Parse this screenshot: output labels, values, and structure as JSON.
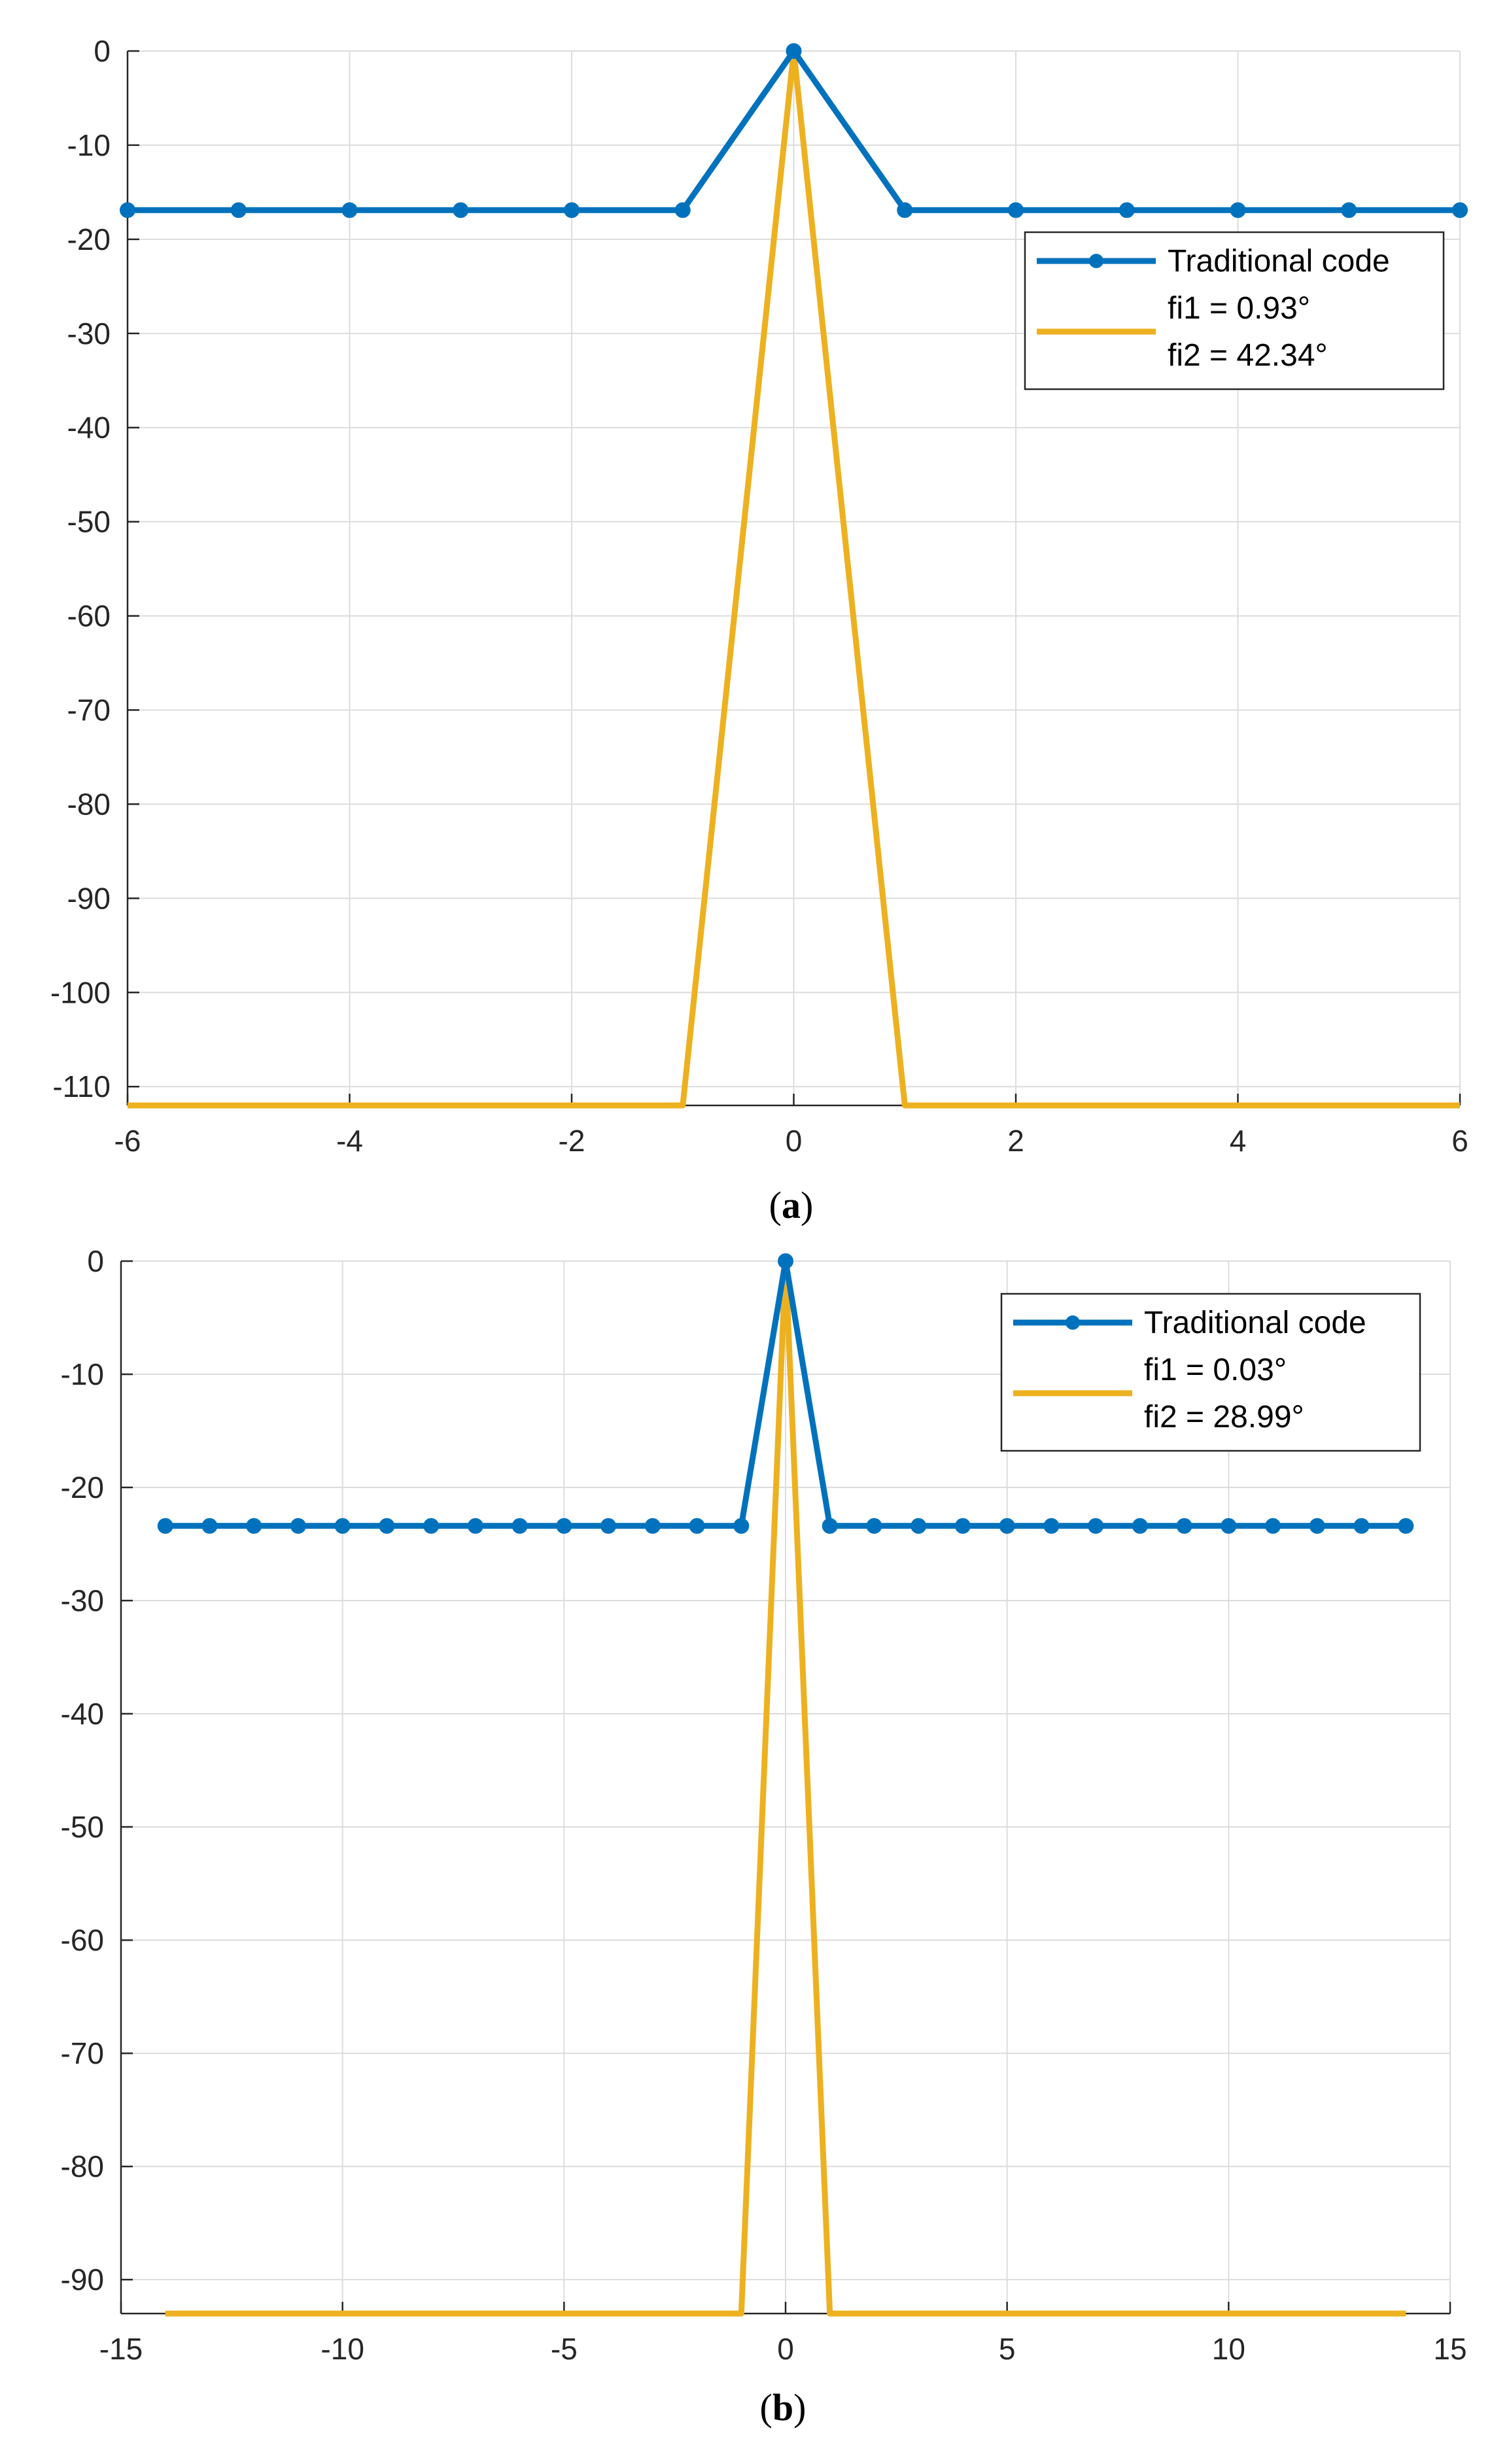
{
  "chart_data": [
    {
      "type": "line",
      "caption_letter": "a",
      "xlim": [
        -6,
        6
      ],
      "ylim": [
        -112,
        0
      ],
      "x_ticks": [
        -6,
        -4,
        -2,
        0,
        2,
        4,
        6
      ],
      "x_tick_labels": [
        "-6",
        "-4",
        "-2",
        "0",
        "2",
        "4",
        "6"
      ],
      "y_ticks": [
        0,
        -10,
        -20,
        -30,
        -40,
        -50,
        -60,
        -70,
        -80,
        -90,
        -100,
        -110
      ],
      "y_tick_labels": [
        "0",
        "-10",
        "-20",
        "-30",
        "-40",
        "-50",
        "-60",
        "-70",
        "-80",
        "-90",
        "-100",
        "-110"
      ],
      "grid": true,
      "legend_position": "top-right",
      "legend_entries": [
        "Traditional code",
        "fi1 = 0.93°",
        "fi2 = 42.34°"
      ],
      "series": [
        {
          "name": "Traditional code",
          "color": "#0072BD",
          "markers": true,
          "x": [
            -6,
            -5,
            -4,
            -3,
            -2,
            -1,
            0,
            1,
            2,
            3,
            4,
            5,
            6
          ],
          "y": [
            -16.9,
            -16.9,
            -16.9,
            -16.9,
            -16.9,
            -16.9,
            0,
            -16.9,
            -16.9,
            -16.9,
            -16.9,
            -16.9,
            -16.9
          ]
        },
        {
          "name": "fi1 = 0.93° fi2 = 42.34°",
          "color": "#EDB120",
          "markers": false,
          "x": [
            -6,
            -1,
            0,
            1,
            6
          ],
          "y": [
            -112,
            -112,
            0,
            -112,
            -112
          ]
        }
      ]
    },
    {
      "type": "line",
      "caption_letter": "b",
      "xlim": [
        -15,
        15
      ],
      "ylim": [
        -93,
        0
      ],
      "x_ticks": [
        -15,
        -10,
        -5,
        0,
        5,
        10,
        15
      ],
      "x_tick_labels": [
        "-15",
        "-10",
        "-5",
        "0",
        "5",
        "10",
        "15"
      ],
      "y_ticks": [
        0,
        -10,
        -20,
        -30,
        -40,
        -50,
        -60,
        -70,
        -80,
        -90
      ],
      "y_tick_labels": [
        "0",
        "-10",
        "-20",
        "-30",
        "-40",
        "-50",
        "-60",
        "-70",
        "-80",
        "-90"
      ],
      "grid": true,
      "legend_position": "top-right",
      "legend_entries": [
        "Traditional code",
        "fi1 = 0.03°",
        "fi2 = 28.99°"
      ],
      "series": [
        {
          "name": "Traditional code",
          "color": "#0072BD",
          "markers": true,
          "x": [
            -14,
            -13,
            -12,
            -11,
            -10,
            -9,
            -8,
            -7,
            -6,
            -5,
            -4,
            -3,
            -2,
            -1,
            0,
            1,
            2,
            3,
            4,
            5,
            6,
            7,
            8,
            9,
            10,
            11,
            12,
            13,
            14
          ],
          "y": [
            -23.4,
            -23.4,
            -23.4,
            -23.4,
            -23.4,
            -23.4,
            -23.4,
            -23.4,
            -23.4,
            -23.4,
            -23.4,
            -23.4,
            -23.4,
            -23.4,
            0,
            -23.4,
            -23.4,
            -23.4,
            -23.4,
            -23.4,
            -23.4,
            -23.4,
            -23.4,
            -23.4,
            -23.4,
            -23.4,
            -23.4,
            -23.4,
            -23.4
          ]
        },
        {
          "name": "fi1 = 0.03° fi2 = 28.99°",
          "color": "#EDB120",
          "markers": false,
          "x": [
            -14,
            -1,
            0,
            1,
            14
          ],
          "y": [
            -93,
            -93,
            0,
            -93,
            -93
          ]
        }
      ]
    }
  ]
}
